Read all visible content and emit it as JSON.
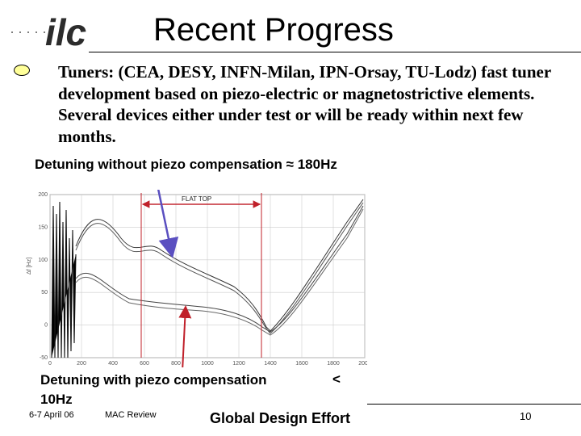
{
  "slide": {
    "title": "Recent Progress",
    "logo_text": "ilc",
    "bullet_lead": "Tuners:",
    "bullet_rest": " (CEA, DESY, INFN-Milan, IPN-Orsay, TU-Lodz) fast tuner development based on piezo-electric or magnetostrictive elements. Several devices either under test or will be ready within next few months.",
    "detuning_without_label": "Detuning without piezo compensation ≈ 180Hz",
    "detuning_with_label": "Detuning with piezo compensation",
    "detuning_with_symbol": "<",
    "detuning_with_value": "10Hz"
  },
  "plot": {
    "flat_top_label": "FLAT TOP",
    "ylabel": "Δf [Hz]",
    "y_ticks": [
      "200",
      "150",
      "100",
      "50",
      "0",
      "-50"
    ],
    "x_ticks": [
      "0",
      "200",
      "400",
      "600",
      "800",
      "1000",
      "1200",
      "1400",
      "1600",
      "1800",
      "2000"
    ],
    "flat_top_range": [
      600,
      1400
    ]
  },
  "footer": {
    "date": "6-7 April 06",
    "review": "MAC Review",
    "org": "Global Design Effort",
    "page": "10"
  },
  "colors": {
    "accent_yellow": "#ffff99",
    "arrow": "#5a4fc0",
    "flat_top_arrow": "#c0202a"
  }
}
